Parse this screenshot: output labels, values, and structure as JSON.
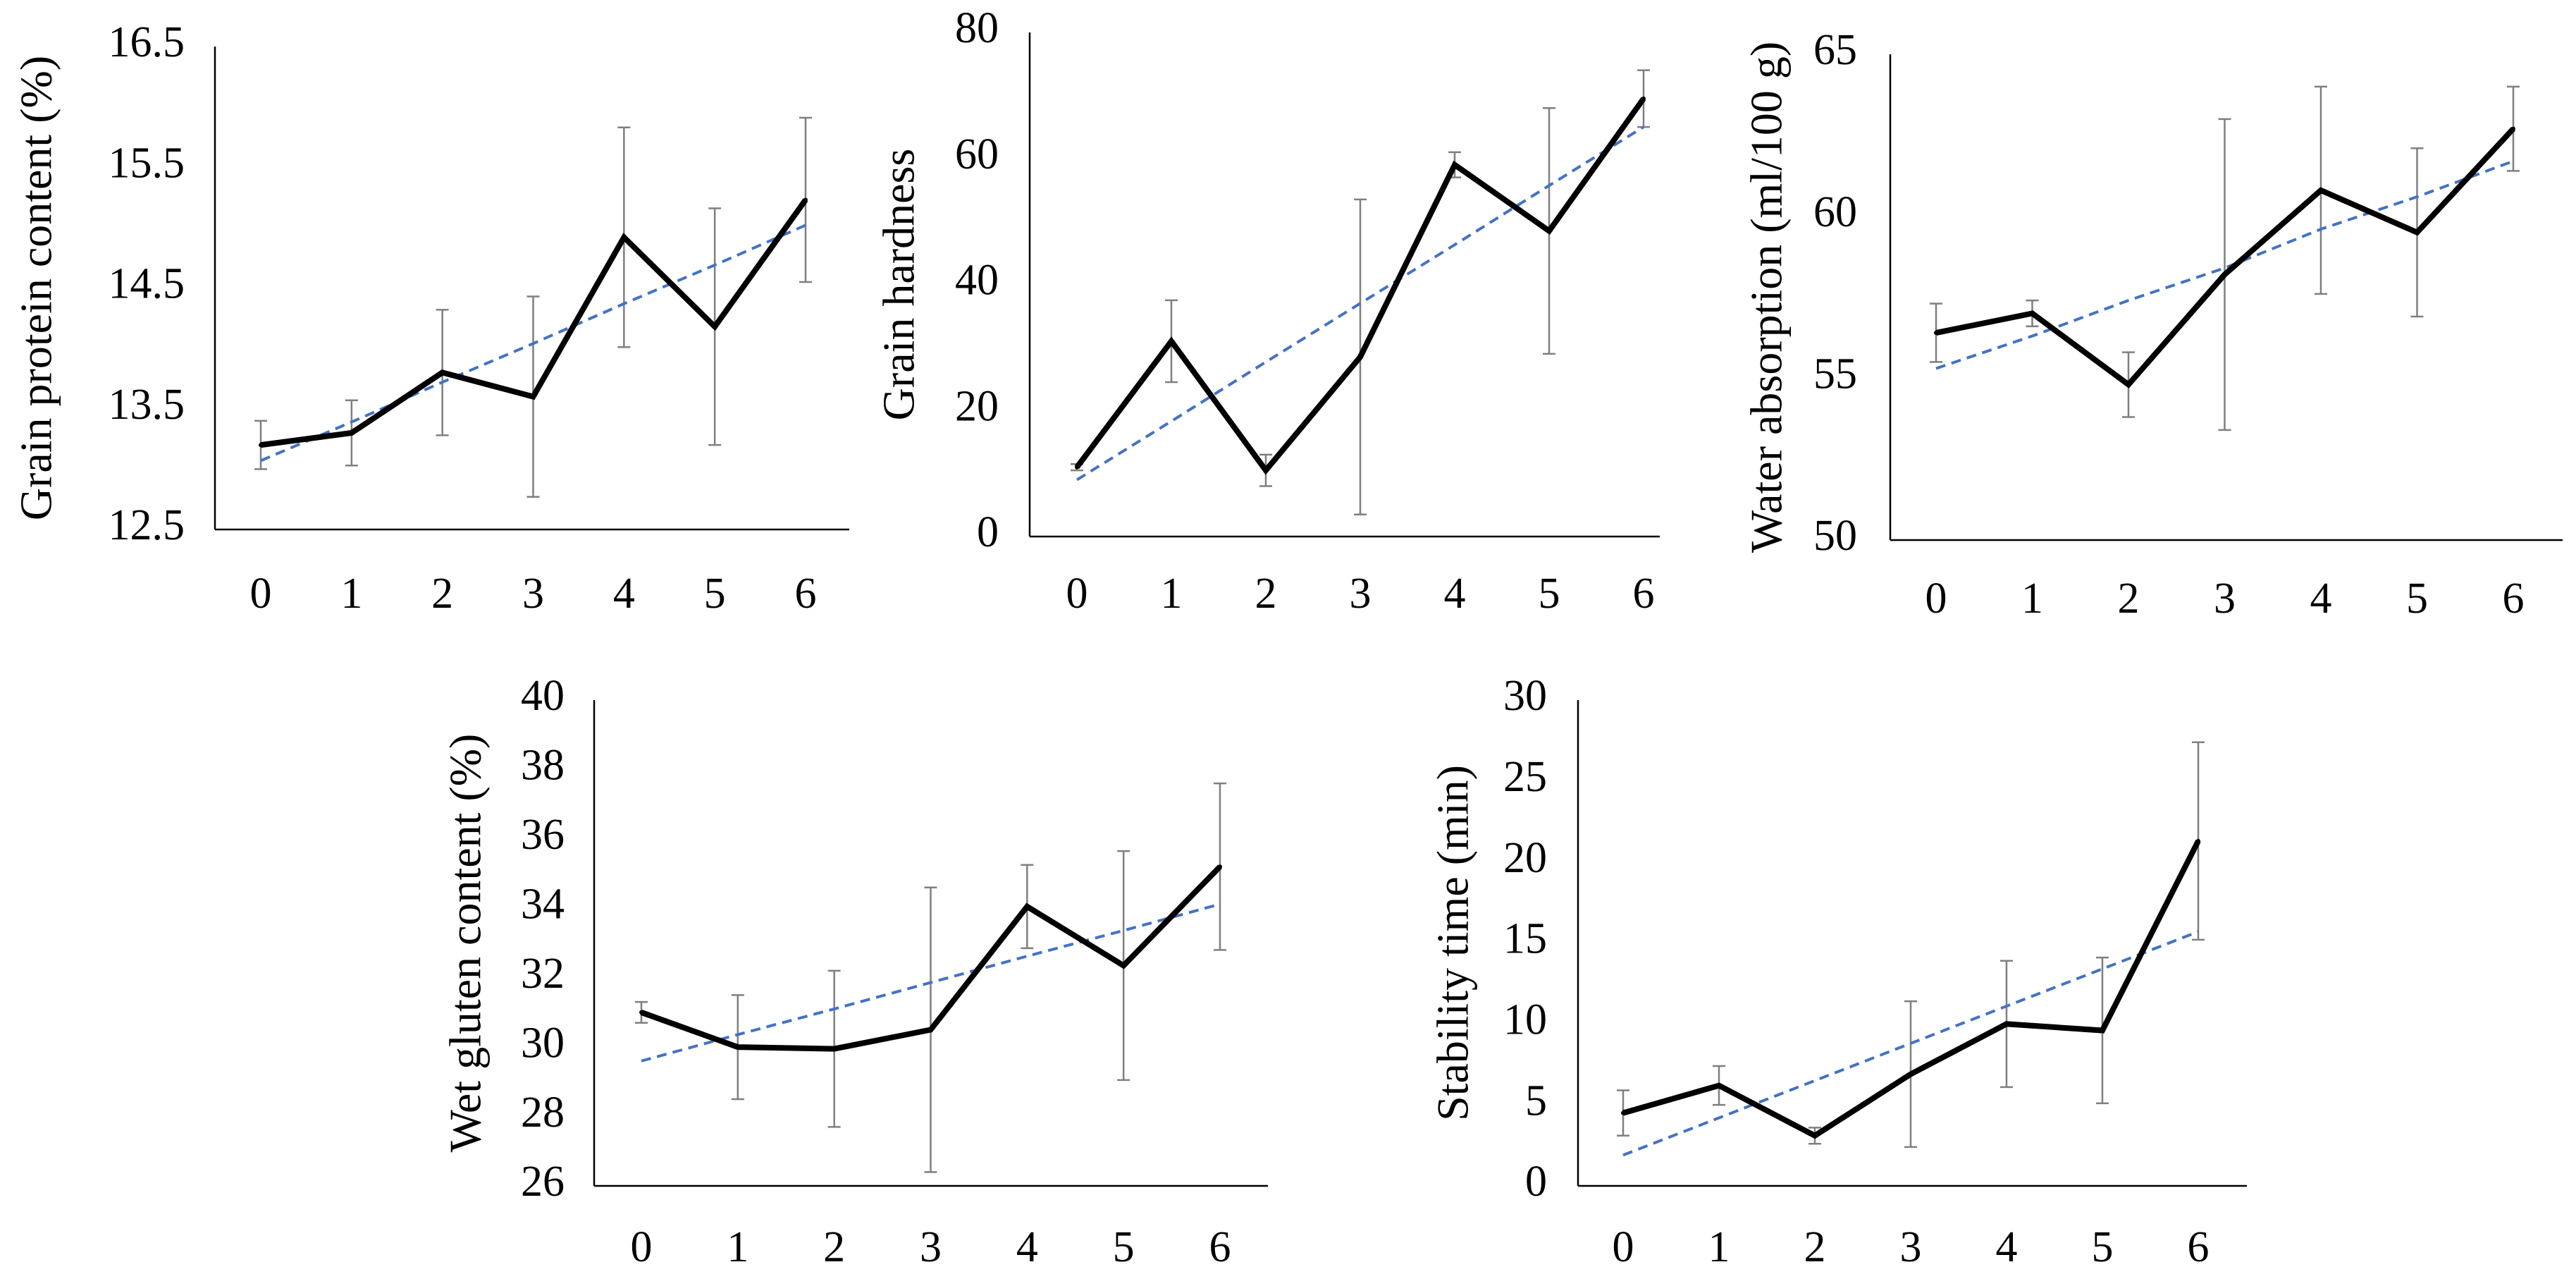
{
  "colors": {
    "series": "#000000",
    "trend": "#4472C4",
    "error_bar": "#7f7f7f",
    "axis": "#000000"
  },
  "chart_data": [
    {
      "type": "line",
      "title": "",
      "xlabel": "",
      "ylabel": "Grain protein content (%)",
      "categories": [
        "0",
        "1",
        "2",
        "3",
        "4",
        "5",
        "6"
      ],
      "ylim": [
        12.5,
        16.5
      ],
      "yticks": [
        "12.5",
        "13.5",
        "14.5",
        "15.5",
        "16.5"
      ],
      "series": [
        {
          "name": "mean",
          "values": [
            13.2,
            13.3,
            13.8,
            13.6,
            14.92,
            14.18,
            15.23
          ],
          "error": [
            0.2,
            0.27,
            0.52,
            0.83,
            0.91,
            0.98,
            0.68
          ]
        },
        {
          "name": "linear trend",
          "values": [
            13.07,
            13.39,
            13.72,
            14.04,
            14.37,
            14.69,
            15.02
          ]
        }
      ]
    },
    {
      "type": "line",
      "title": "",
      "xlabel": "",
      "ylabel": "Grain hardness",
      "categories": [
        "0",
        "1",
        "2",
        "3",
        "4",
        "5",
        "6"
      ],
      "ylim": [
        0,
        80
      ],
      "yticks": [
        "0",
        "20",
        "40",
        "60",
        "80"
      ],
      "series": [
        {
          "name": "mean",
          "values": [
            11,
            31,
            10.5,
            28.5,
            59,
            48.5,
            69.5
          ],
          "error": [
            0.5,
            6.5,
            2.5,
            25,
            2,
            19.5,
            4.5
          ]
        },
        {
          "name": "linear trend",
          "values": [
            9,
            18.3,
            27.7,
            37,
            46.3,
            55.7,
            65
          ]
        }
      ]
    },
    {
      "type": "line",
      "title": "",
      "xlabel": "",
      "ylabel": "Water absorption (ml/100 g)",
      "categories": [
        "0",
        "1",
        "2",
        "3",
        "4",
        "5",
        "6"
      ],
      "ylim": [
        50,
        65
      ],
      "yticks": [
        "50",
        "55",
        "60",
        "65"
      ],
      "series": [
        {
          "name": "mean",
          "values": [
            56.4,
            57,
            54.8,
            58.2,
            60.8,
            59.5,
            62.7
          ],
          "error": [
            0.9,
            0.4,
            1.0,
            4.8,
            3.2,
            2.6,
            1.3
          ]
        },
        {
          "name": "linear trend",
          "values": [
            55.3,
            56.3,
            57.4,
            58.4,
            59.6,
            60.6,
            61.7
          ]
        }
      ]
    },
    {
      "type": "line",
      "title": "",
      "xlabel": "",
      "ylabel": "Wet gluten content (%)",
      "categories": [
        "0",
        "1",
        "2",
        "3",
        "4",
        "5",
        "6"
      ],
      "ylim": [
        26,
        40
      ],
      "yticks": [
        "26",
        "28",
        "30",
        "32",
        "34",
        "36",
        "38",
        "40"
      ],
      "series": [
        {
          "name": "mean",
          "values": [
            31.0,
            30.0,
            29.95,
            30.5,
            34.05,
            32.35,
            35.2
          ],
          "error": [
            0.3,
            1.5,
            2.25,
            4.1,
            1.2,
            3.3,
            2.4
          ]
        },
        {
          "name": "linear trend",
          "values": [
            29.6,
            30.36,
            31.1,
            31.86,
            32.62,
            33.36,
            34.12
          ]
        }
      ]
    },
    {
      "type": "line",
      "title": "",
      "xlabel": "",
      "ylabel": "Stability time (min)",
      "categories": [
        "0",
        "1",
        "2",
        "3",
        "4",
        "5",
        "6"
      ],
      "ylim": [
        0,
        30
      ],
      "yticks": [
        "0",
        "5",
        "10",
        "15",
        "20",
        "25",
        "30"
      ],
      "series": [
        {
          "name": "mean",
          "values": [
            4.5,
            6.2,
            3.1,
            6.9,
            10.0,
            9.6,
            21.3
          ],
          "error": [
            1.4,
            1.2,
            0.5,
            4.5,
            3.9,
            4.5,
            6.1
          ]
        },
        {
          "name": "linear trend",
          "values": [
            1.9,
            4.2,
            6.5,
            8.8,
            11.1,
            13.4,
            15.7
          ]
        }
      ]
    }
  ]
}
